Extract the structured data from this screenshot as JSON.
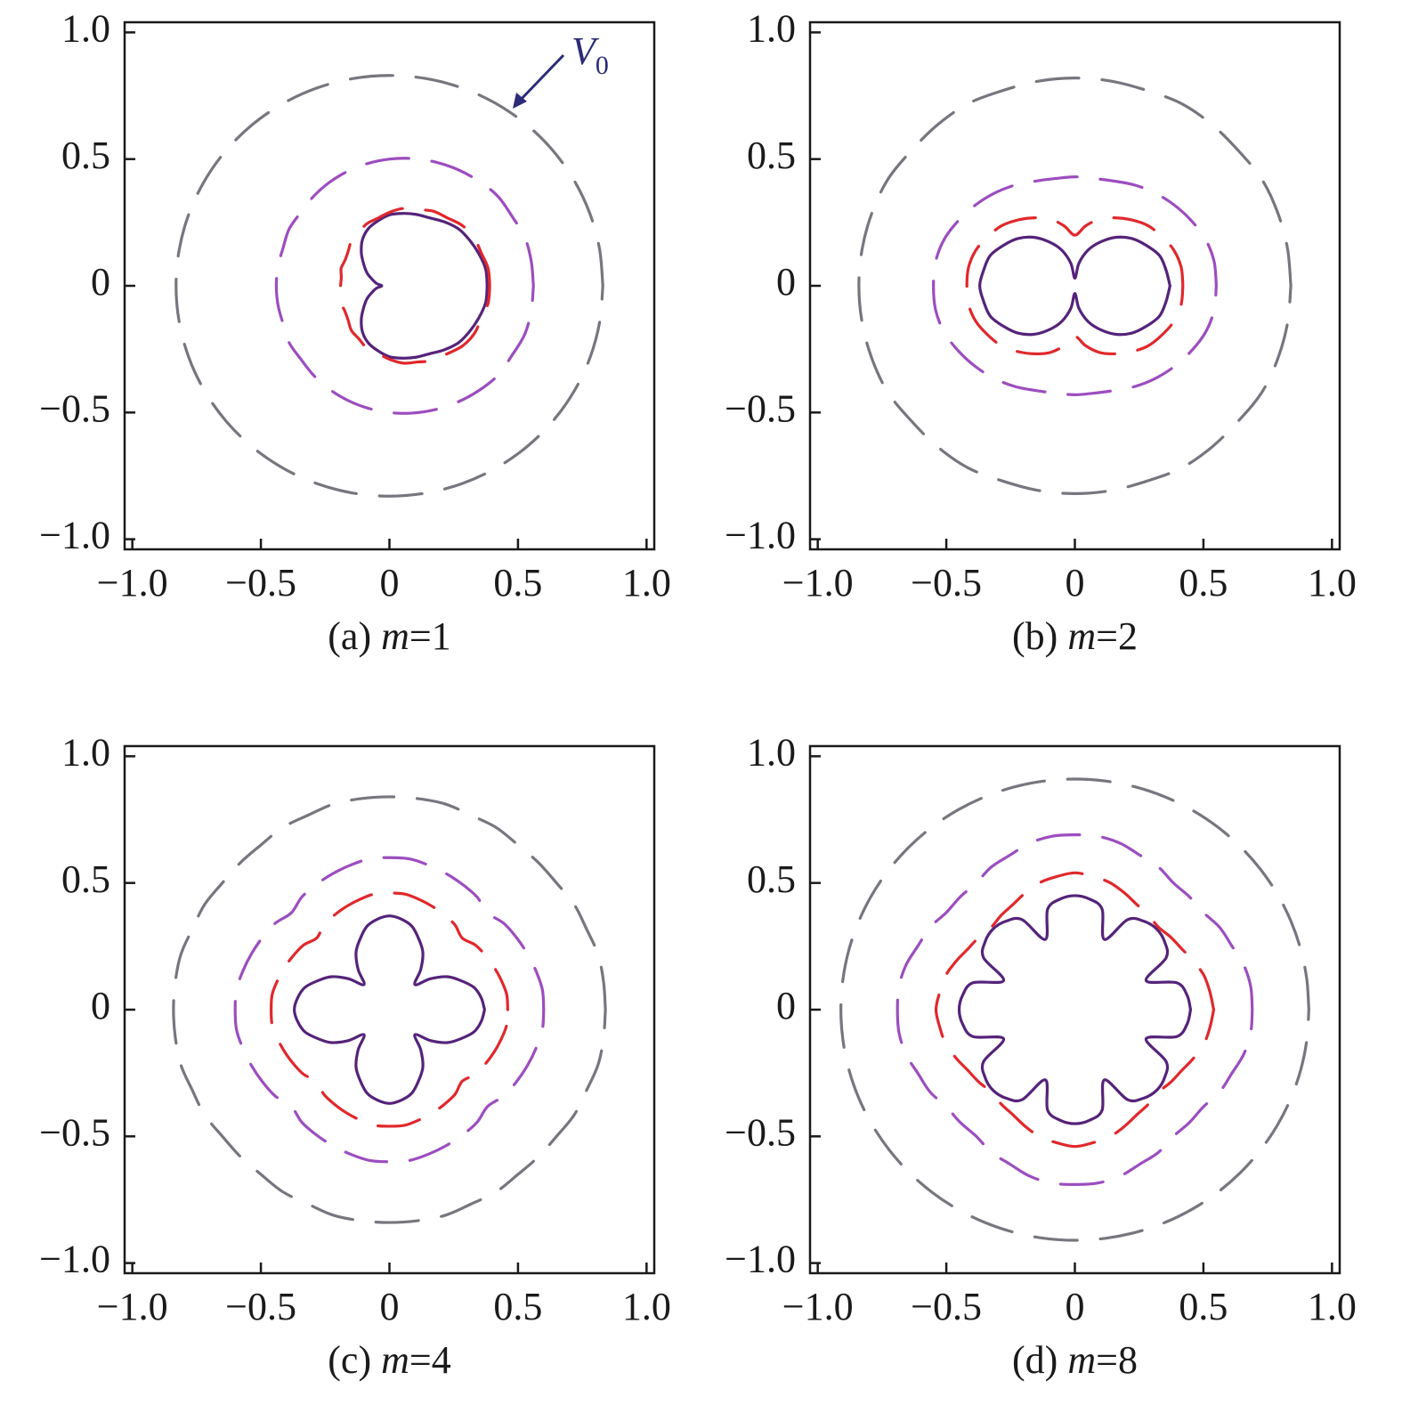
{
  "chart_data": [
    {
      "type": "polar",
      "caption": [
        "(a)",
        "m",
        "=1"
      ],
      "annotation": {
        "text": "V",
        "subscript": "0"
      },
      "xlim": [
        -1.03,
        1.03
      ],
      "ylim": [
        -1.04,
        1.04
      ],
      "xticks": [
        {
          "value": -1,
          "label": "−1.0"
        },
        {
          "value": -0.5,
          "label": "−0.5"
        },
        0,
        0.5,
        {
          "value": 1,
          "label": "1.0"
        }
      ],
      "yticks": [
        {
          "value": -1,
          "label": "−1.0"
        },
        {
          "value": -0.5,
          "label": "−0.5"
        },
        0,
        0.5,
        {
          "value": 1,
          "label": "1.0"
        }
      ],
      "theta": [
        0,
        10,
        20,
        30,
        40,
        50,
        60,
        70,
        80,
        90,
        100,
        110,
        120,
        130,
        140,
        150,
        160,
        170,
        180,
        190,
        200,
        210,
        220,
        230,
        240,
        250,
        260,
        270,
        280,
        290,
        300,
        310,
        320,
        330,
        340,
        350,
        360
      ],
      "series": [
        {
          "color": "#55237a",
          "linestyle": "solid",
          "values": [
            0.38,
            0.38,
            0.37,
            0.36,
            0.35,
            0.33,
            0.31,
            0.3,
            0.29,
            0.28,
            0.26,
            0.24,
            0.21,
            0.17,
            0.13,
            0.1,
            0.07,
            0.05,
            0.03,
            0.05,
            0.07,
            0.1,
            0.13,
            0.17,
            0.21,
            0.24,
            0.26,
            0.28,
            0.29,
            0.3,
            0.31,
            0.33,
            0.35,
            0.36,
            0.37,
            0.38,
            0.38
          ]
        },
        {
          "color": "#e0282c",
          "linestyle": "dashed",
          "values": [
            0.39,
            0.39,
            0.38,
            0.38,
            0.37,
            0.35,
            0.34,
            0.32,
            0.31,
            0.29,
            0.27,
            0.26,
            0.24,
            0.23,
            0.21,
            0.2,
            0.2,
            0.19,
            0.19,
            0.19,
            0.2,
            0.2,
            0.21,
            0.23,
            0.24,
            0.26,
            0.27,
            0.29,
            0.31,
            0.32,
            0.34,
            0.35,
            0.37,
            0.38,
            0.38,
            0.39,
            0.39
          ]
        },
        {
          "color": "#9c4dbf",
          "linestyle": "dashed",
          "values": [
            0.56,
            0.56,
            0.56,
            0.55,
            0.55,
            0.54,
            0.53,
            0.52,
            0.51,
            0.5,
            0.49,
            0.48,
            0.47,
            0.46,
            0.45,
            0.45,
            0.44,
            0.44,
            0.44,
            0.44,
            0.44,
            0.45,
            0.45,
            0.46,
            0.47,
            0.48,
            0.49,
            0.5,
            0.51,
            0.52,
            0.53,
            0.54,
            0.55,
            0.55,
            0.56,
            0.56,
            0.56
          ]
        },
        {
          "color": "#76767e",
          "linestyle": "dashed",
          "values": [
            0.83,
            0.83,
            0.83,
            0.83,
            0.83,
            0.83,
            0.83,
            0.83,
            0.83,
            0.83,
            0.83,
            0.83,
            0.83,
            0.83,
            0.83,
            0.83,
            0.83,
            0.83,
            0.83,
            0.83,
            0.83,
            0.83,
            0.83,
            0.83,
            0.83,
            0.83,
            0.83,
            0.83,
            0.83,
            0.83,
            0.83,
            0.83,
            0.83,
            0.83,
            0.83,
            0.83,
            0.83
          ]
        }
      ]
    },
    {
      "type": "polar",
      "caption": [
        "(b)",
        "m",
        "=2"
      ],
      "xlim": [
        -1.03,
        1.03
      ],
      "ylim": [
        -1.04,
        1.04
      ],
      "xticks": [
        {
          "value": -1,
          "label": "−1.0"
        },
        {
          "value": -0.5,
          "label": "−0.5"
        },
        0,
        0.5,
        {
          "value": 1,
          "label": "1.0"
        }
      ],
      "yticks": [
        {
          "value": -1,
          "label": "−1.0"
        },
        {
          "value": -0.5,
          "label": "−0.5"
        },
        0,
        0.5,
        {
          "value": 1,
          "label": "1.0"
        }
      ],
      "theta": [
        0,
        10,
        20,
        30,
        40,
        50,
        60,
        70,
        80,
        90,
        100,
        110,
        120,
        130,
        140,
        150,
        160,
        170,
        180,
        190,
        200,
        210,
        220,
        230,
        240,
        250,
        260,
        270,
        280,
        290,
        300,
        310,
        320,
        330,
        340,
        350,
        360
      ],
      "series": [
        {
          "color": "#55237a",
          "linestyle": "solid",
          "values": [
            0.37,
            0.36,
            0.35,
            0.32,
            0.29,
            0.25,
            0.2,
            0.15,
            0.09,
            0.03,
            0.09,
            0.15,
            0.2,
            0.25,
            0.29,
            0.32,
            0.35,
            0.36,
            0.37,
            0.36,
            0.35,
            0.32,
            0.29,
            0.25,
            0.2,
            0.15,
            0.09,
            0.03,
            0.09,
            0.15,
            0.2,
            0.25,
            0.29,
            0.32,
            0.35,
            0.36,
            0.37
          ]
        },
        {
          "color": "#e0282c",
          "linestyle": "dashed",
          "values": [
            0.42,
            0.42,
            0.41,
            0.39,
            0.37,
            0.34,
            0.31,
            0.28,
            0.24,
            0.2,
            0.24,
            0.28,
            0.31,
            0.34,
            0.37,
            0.39,
            0.41,
            0.42,
            0.42,
            0.42,
            0.41,
            0.39,
            0.37,
            0.34,
            0.31,
            0.28,
            0.24,
            0.2,
            0.24,
            0.28,
            0.31,
            0.34,
            0.37,
            0.39,
            0.41,
            0.42,
            0.42
          ]
        },
        {
          "color": "#9c4dbf",
          "linestyle": "dashed",
          "values": [
            0.55,
            0.55,
            0.54,
            0.52,
            0.5,
            0.48,
            0.46,
            0.44,
            0.43,
            0.43,
            0.43,
            0.44,
            0.46,
            0.48,
            0.5,
            0.52,
            0.54,
            0.55,
            0.55,
            0.55,
            0.54,
            0.52,
            0.5,
            0.48,
            0.46,
            0.44,
            0.43,
            0.43,
            0.43,
            0.44,
            0.46,
            0.48,
            0.5,
            0.52,
            0.54,
            0.55,
            0.55
          ]
        },
        {
          "color": "#76767e",
          "linestyle": "dashed",
          "values": [
            0.84,
            0.84,
            0.84,
            0.84,
            0.83,
            0.83,
            0.83,
            0.82,
            0.82,
            0.82,
            0.82,
            0.82,
            0.83,
            0.83,
            0.83,
            0.84,
            0.84,
            0.84,
            0.84,
            0.84,
            0.84,
            0.84,
            0.83,
            0.83,
            0.83,
            0.82,
            0.82,
            0.82,
            0.82,
            0.82,
            0.83,
            0.83,
            0.83,
            0.84,
            0.84,
            0.84,
            0.84
          ]
        }
      ]
    },
    {
      "type": "polar",
      "caption": [
        "(c)",
        "m",
        "=4"
      ],
      "xlim": [
        -1.03,
        1.03
      ],
      "ylim": [
        -1.04,
        1.04
      ],
      "xticks": [
        {
          "value": -1,
          "label": "−1.0"
        },
        {
          "value": -0.5,
          "label": "−0.5"
        },
        0,
        0.5,
        {
          "value": 1,
          "label": "1.0"
        }
      ],
      "yticks": [
        {
          "value": -1,
          "label": "−1.0"
        },
        {
          "value": -0.5,
          "label": "−0.5"
        },
        0,
        0.5,
        {
          "value": 1,
          "label": "1.0"
        }
      ],
      "theta": [
        0,
        7.5,
        15,
        22.5,
        30,
        37.5,
        45,
        52.5,
        60,
        67.5,
        75,
        82.5,
        90,
        97.5,
        105,
        112.5,
        120,
        127.5,
        135,
        142.5,
        150,
        157.5,
        165,
        172.5,
        180,
        187.5,
        195,
        202.5,
        210,
        217.5,
        225,
        232.5,
        240,
        247.5,
        255,
        262.5,
        270,
        277.5,
        285,
        292.5,
        300,
        307.5,
        315,
        322.5,
        330,
        337.5,
        345,
        352.5,
        360
      ],
      "series": [
        {
          "color": "#55237a",
          "linestyle": "solid",
          "values": [
            0.37,
            0.36,
            0.34,
            0.3,
            0.26,
            0.2,
            0.14,
            0.2,
            0.26,
            0.3,
            0.34,
            0.36,
            0.37,
            0.36,
            0.34,
            0.3,
            0.26,
            0.2,
            0.14,
            0.2,
            0.26,
            0.3,
            0.34,
            0.36,
            0.37,
            0.36,
            0.34,
            0.3,
            0.26,
            0.2,
            0.14,
            0.2,
            0.26,
            0.3,
            0.34,
            0.36,
            0.37,
            0.36,
            0.34,
            0.3,
            0.26,
            0.2,
            0.14,
            0.2,
            0.26,
            0.3,
            0.34,
            0.36,
            0.37
          ]
        },
        {
          "color": "#e0282c",
          "linestyle": "dashed",
          "values": [
            0.46,
            0.46,
            0.45,
            0.44,
            0.43,
            0.42,
            0.4,
            0.42,
            0.43,
            0.44,
            0.45,
            0.46,
            0.46,
            0.46,
            0.45,
            0.44,
            0.43,
            0.42,
            0.4,
            0.42,
            0.43,
            0.44,
            0.45,
            0.46,
            0.46,
            0.46,
            0.45,
            0.44,
            0.43,
            0.42,
            0.4,
            0.42,
            0.43,
            0.44,
            0.45,
            0.46,
            0.46,
            0.46,
            0.45,
            0.44,
            0.43,
            0.42,
            0.4,
            0.42,
            0.43,
            0.44,
            0.45,
            0.46,
            0.46
          ]
        },
        {
          "color": "#9c4dbf",
          "linestyle": "dashed",
          "values": [
            0.6,
            0.6,
            0.59,
            0.58,
            0.57,
            0.56,
            0.54,
            0.56,
            0.57,
            0.58,
            0.59,
            0.6,
            0.6,
            0.6,
            0.59,
            0.58,
            0.57,
            0.56,
            0.54,
            0.56,
            0.57,
            0.58,
            0.59,
            0.6,
            0.6,
            0.6,
            0.59,
            0.58,
            0.57,
            0.56,
            0.54,
            0.56,
            0.57,
            0.58,
            0.59,
            0.6,
            0.6,
            0.6,
            0.59,
            0.58,
            0.57,
            0.56,
            0.54,
            0.56,
            0.57,
            0.58,
            0.59,
            0.6,
            0.6
          ]
        },
        {
          "color": "#76767e",
          "linestyle": "dashed",
          "values": [
            0.84,
            0.84,
            0.84,
            0.83,
            0.83,
            0.82,
            0.82,
            0.82,
            0.83,
            0.83,
            0.84,
            0.84,
            0.84,
            0.84,
            0.84,
            0.83,
            0.83,
            0.82,
            0.82,
            0.82,
            0.83,
            0.83,
            0.84,
            0.84,
            0.84,
            0.84,
            0.84,
            0.83,
            0.83,
            0.82,
            0.82,
            0.82,
            0.83,
            0.83,
            0.84,
            0.84,
            0.84,
            0.84,
            0.84,
            0.83,
            0.83,
            0.82,
            0.82,
            0.82,
            0.83,
            0.83,
            0.84,
            0.84,
            0.84
          ]
        }
      ]
    },
    {
      "type": "polar",
      "caption": [
        "(d)",
        "m",
        "=8"
      ],
      "xlim": [
        -1.03,
        1.03
      ],
      "ylim": [
        -1.04,
        1.04
      ],
      "xticks": [
        {
          "value": -1,
          "label": "−1.0"
        },
        {
          "value": -0.5,
          "label": "−0.5"
        },
        0,
        0.5,
        {
          "value": 1,
          "label": "1.0"
        }
      ],
      "yticks": [
        {
          "value": -1,
          "label": "−1.0"
        },
        {
          "value": -0.5,
          "label": "−0.5"
        },
        0,
        0.5,
        {
          "value": 1,
          "label": "1.0"
        }
      ],
      "theta": [
        0,
        7.5,
        15,
        22.5,
        30,
        37.5,
        45,
        52.5,
        60,
        67.5,
        75,
        82.5,
        90,
        97.5,
        105,
        112.5,
        120,
        127.5,
        135,
        142.5,
        150,
        157.5,
        165,
        172.5,
        180,
        187.5,
        195,
        202.5,
        210,
        217.5,
        225,
        232.5,
        240,
        247.5,
        255,
        262.5,
        270,
        277.5,
        285,
        292.5,
        300,
        307.5,
        315,
        322.5,
        330,
        337.5,
        345,
        352.5,
        360
      ],
      "series": [
        {
          "color": "#55237a",
          "linestyle": "solid",
          "values": [
            0.45,
            0.44,
            0.41,
            0.3,
            0.41,
            0.44,
            0.45,
            0.44,
            0.41,
            0.3,
            0.41,
            0.44,
            0.45,
            0.44,
            0.41,
            0.3,
            0.41,
            0.44,
            0.45,
            0.44,
            0.41,
            0.3,
            0.41,
            0.44,
            0.45,
            0.44,
            0.41,
            0.3,
            0.41,
            0.44,
            0.45,
            0.44,
            0.41,
            0.3,
            0.41,
            0.44,
            0.45,
            0.44,
            0.41,
            0.3,
            0.41,
            0.44,
            0.45,
            0.44,
            0.41,
            0.3,
            0.41,
            0.44,
            0.45
          ]
        },
        {
          "color": "#e0282c",
          "linestyle": "dashed",
          "values": [
            0.54,
            0.53,
            0.52,
            0.5,
            0.48,
            0.47,
            0.46,
            0.47,
            0.48,
            0.5,
            0.52,
            0.53,
            0.54,
            0.53,
            0.52,
            0.5,
            0.48,
            0.47,
            0.46,
            0.47,
            0.48,
            0.5,
            0.52,
            0.53,
            0.54,
            0.53,
            0.52,
            0.5,
            0.48,
            0.47,
            0.46,
            0.47,
            0.48,
            0.5,
            0.52,
            0.53,
            0.54,
            0.53,
            0.52,
            0.5,
            0.48,
            0.47,
            0.46,
            0.47,
            0.48,
            0.5,
            0.52,
            0.53,
            0.54
          ]
        },
        {
          "color": "#9c4dbf",
          "linestyle": "dashed",
          "values": [
            0.69,
            0.69,
            0.68,
            0.66,
            0.65,
            0.63,
            0.63,
            0.63,
            0.65,
            0.66,
            0.68,
            0.69,
            0.69,
            0.69,
            0.68,
            0.66,
            0.65,
            0.63,
            0.63,
            0.63,
            0.65,
            0.66,
            0.68,
            0.69,
            0.69,
            0.69,
            0.68,
            0.66,
            0.65,
            0.63,
            0.63,
            0.63,
            0.65,
            0.66,
            0.68,
            0.69,
            0.69,
            0.69,
            0.68,
            0.66,
            0.65,
            0.63,
            0.63,
            0.63,
            0.65,
            0.66,
            0.68,
            0.69,
            0.69
          ]
        },
        {
          "color": "#76767e",
          "linestyle": "dashed",
          "values": [
            0.91,
            0.91,
            0.91,
            0.91,
            0.91,
            0.91,
            0.91,
            0.91,
            0.91,
            0.91,
            0.91,
            0.91,
            0.91,
            0.91,
            0.91,
            0.91,
            0.91,
            0.91,
            0.91,
            0.91,
            0.91,
            0.91,
            0.91,
            0.91,
            0.91,
            0.91,
            0.91,
            0.91,
            0.91,
            0.91,
            0.91,
            0.91,
            0.91,
            0.91,
            0.91,
            0.91,
            0.91,
            0.91,
            0.91,
            0.91,
            0.91,
            0.91,
            0.91,
            0.91,
            0.91,
            0.91,
            0.91,
            0.91,
            0.91
          ]
        }
      ]
    }
  ]
}
